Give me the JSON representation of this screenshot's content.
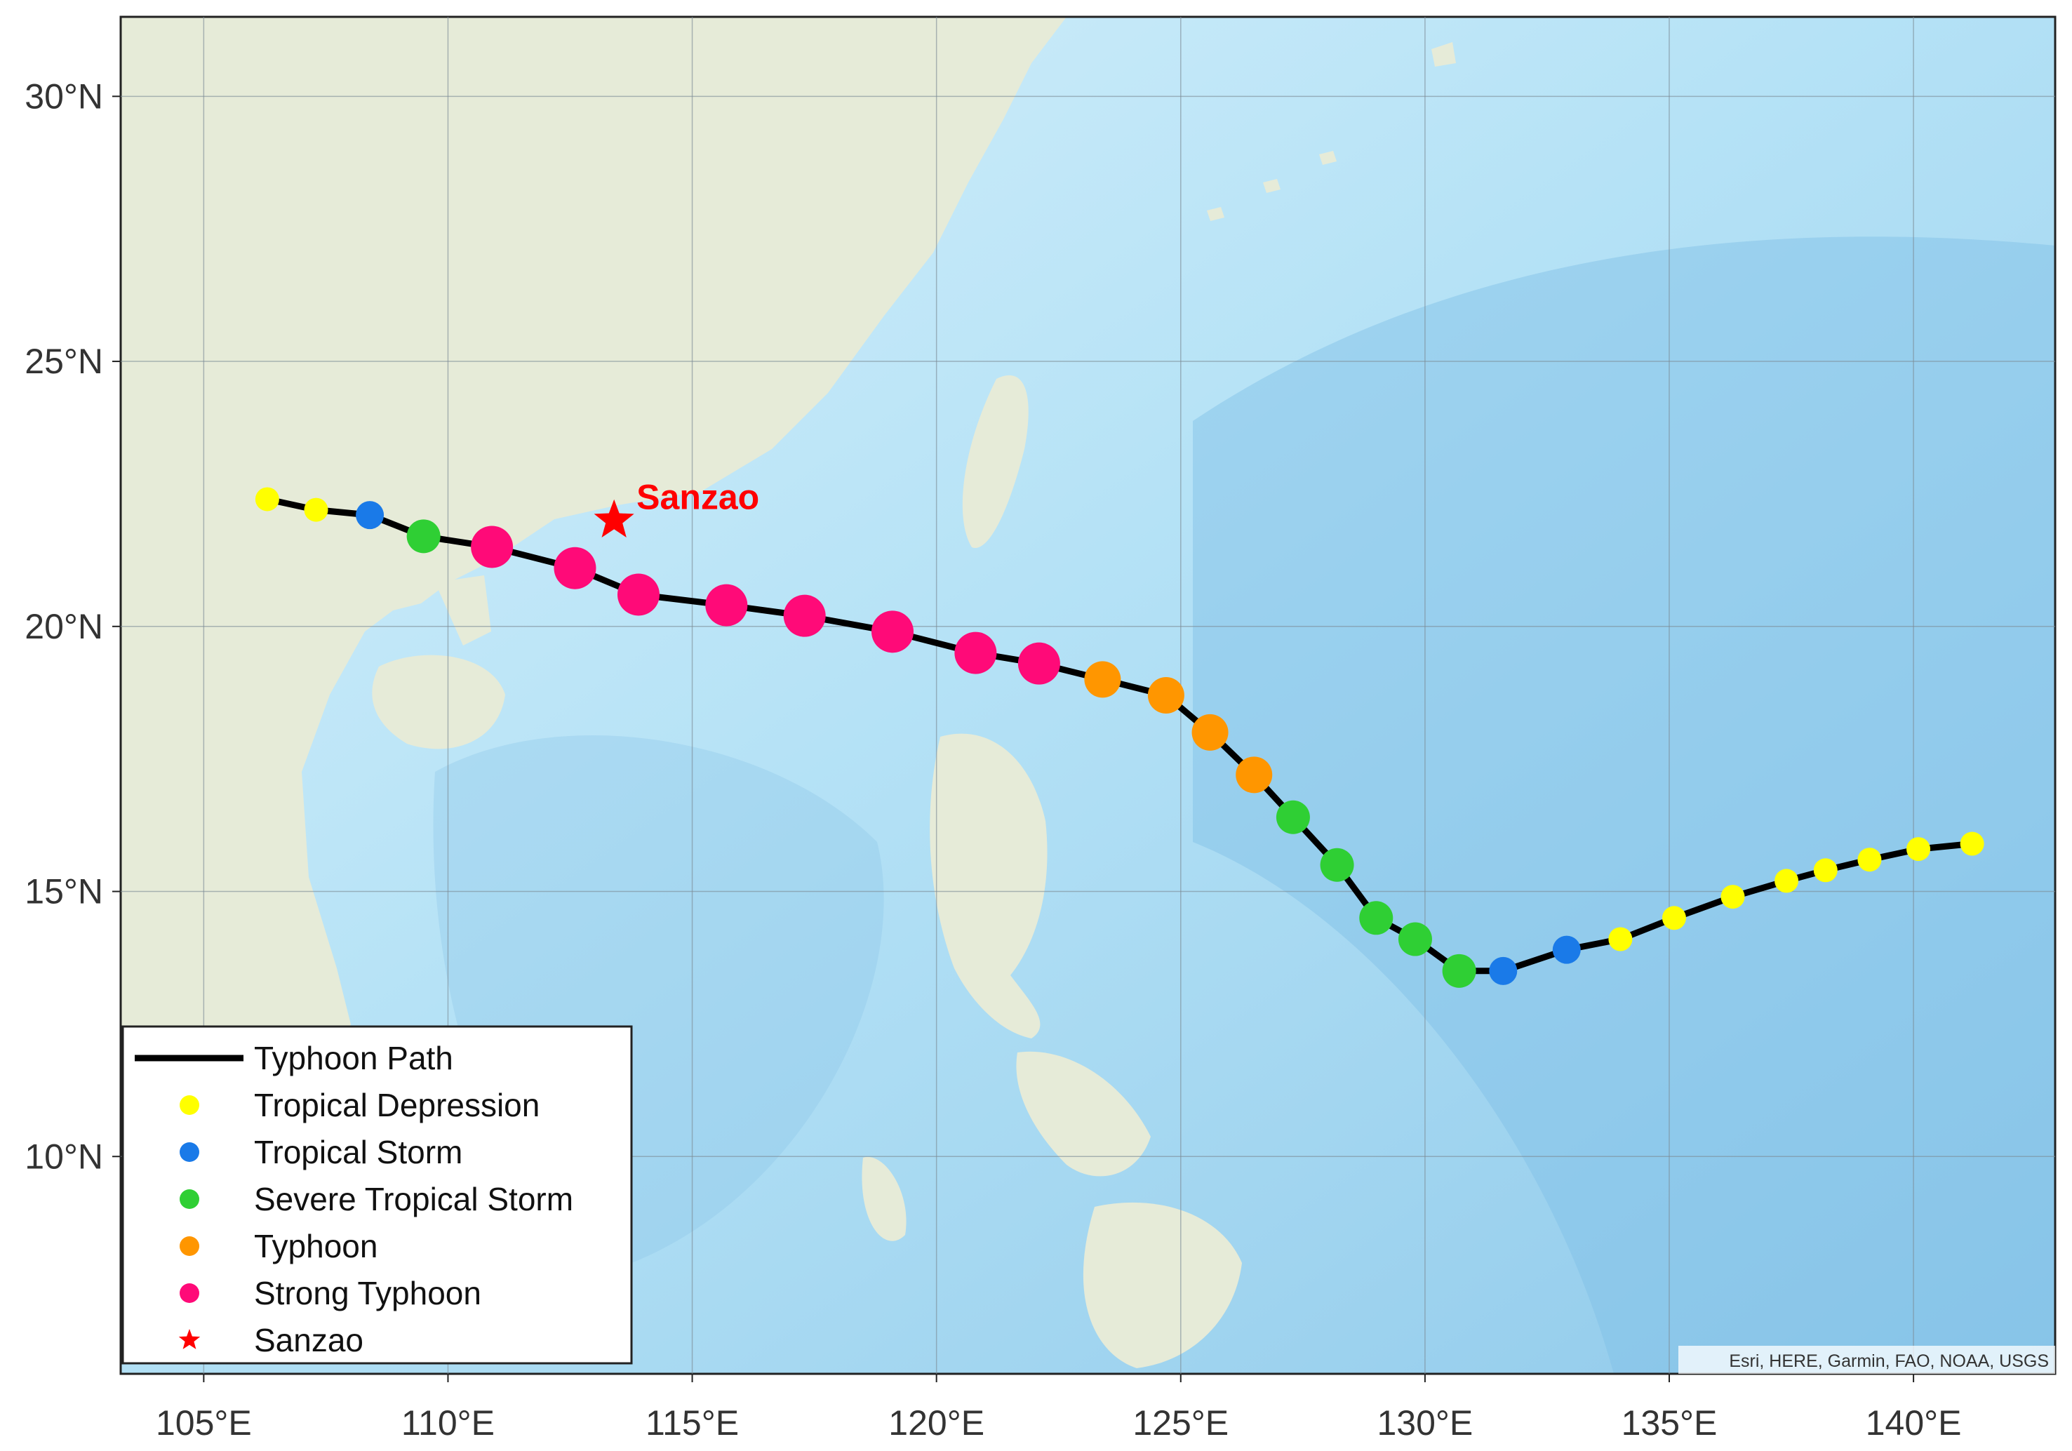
{
  "map": {
    "lon_range": [
      103.3,
      142.9
    ],
    "lat_range": [
      5.9,
      31.5
    ],
    "lon_ticks": [
      105,
      110,
      115,
      120,
      125,
      130,
      135,
      140
    ],
    "lon_tick_labels": [
      "105°E",
      "110°E",
      "115°E",
      "120°E",
      "125°E",
      "130°E",
      "135°E",
      "140°E"
    ],
    "lat_ticks": [
      10,
      15,
      20,
      25,
      30
    ],
    "lat_tick_labels": [
      "10°N",
      "15°N",
      "20°N",
      "25°N",
      "30°N"
    ],
    "grid": true,
    "attribution": "Esri, HERE, Garmin, FAO, NOAA, USGS",
    "colors": {
      "ocean": "#9fd2ee",
      "land": "#e4ead6",
      "path": "#000000",
      "tropical_depression": "#ffff00",
      "tropical_storm": "#1a7ae8",
      "severe_tropical_storm": "#2fcf34",
      "typhoon": "#ff9600",
      "strong_typhoon": "#ff0a78",
      "station": "#ff0000"
    }
  },
  "station": {
    "label": "Sanzao",
    "lon": 113.4,
    "lat": 22.0
  },
  "track": [
    {
      "lon": 141.2,
      "lat": 15.9,
      "cat": "tropical_depression"
    },
    {
      "lon": 140.1,
      "lat": 15.8,
      "cat": "tropical_depression"
    },
    {
      "lon": 139.1,
      "lat": 15.6,
      "cat": "tropical_depression"
    },
    {
      "lon": 138.2,
      "lat": 15.4,
      "cat": "tropical_depression"
    },
    {
      "lon": 137.4,
      "lat": 15.2,
      "cat": "tropical_depression"
    },
    {
      "lon": 136.3,
      "lat": 14.9,
      "cat": "tropical_depression"
    },
    {
      "lon": 135.1,
      "lat": 14.5,
      "cat": "tropical_depression"
    },
    {
      "lon": 134.0,
      "lat": 14.1,
      "cat": "tropical_depression"
    },
    {
      "lon": 132.9,
      "lat": 13.9,
      "cat": "tropical_storm"
    },
    {
      "lon": 131.6,
      "lat": 13.5,
      "cat": "tropical_storm"
    },
    {
      "lon": 130.7,
      "lat": 13.5,
      "cat": "severe_tropical_storm"
    },
    {
      "lon": 129.8,
      "lat": 14.1,
      "cat": "severe_tropical_storm"
    },
    {
      "lon": 129.0,
      "lat": 14.5,
      "cat": "severe_tropical_storm"
    },
    {
      "lon": 128.2,
      "lat": 15.5,
      "cat": "severe_tropical_storm"
    },
    {
      "lon": 127.3,
      "lat": 16.4,
      "cat": "severe_tropical_storm"
    },
    {
      "lon": 126.5,
      "lat": 17.2,
      "cat": "typhoon"
    },
    {
      "lon": 125.6,
      "lat": 18.0,
      "cat": "typhoon"
    },
    {
      "lon": 124.7,
      "lat": 18.7,
      "cat": "typhoon"
    },
    {
      "lon": 123.4,
      "lat": 19.0,
      "cat": "typhoon"
    },
    {
      "lon": 122.1,
      "lat": 19.3,
      "cat": "strong_typhoon"
    },
    {
      "lon": 120.8,
      "lat": 19.5,
      "cat": "strong_typhoon"
    },
    {
      "lon": 119.1,
      "lat": 19.9,
      "cat": "strong_typhoon"
    },
    {
      "lon": 117.3,
      "lat": 20.2,
      "cat": "strong_typhoon"
    },
    {
      "lon": 115.7,
      "lat": 20.4,
      "cat": "strong_typhoon"
    },
    {
      "lon": 113.9,
      "lat": 20.6,
      "cat": "strong_typhoon"
    },
    {
      "lon": 112.6,
      "lat": 21.1,
      "cat": "strong_typhoon"
    },
    {
      "lon": 110.9,
      "lat": 21.5,
      "cat": "strong_typhoon"
    },
    {
      "lon": 109.5,
      "lat": 21.7,
      "cat": "severe_tropical_storm"
    },
    {
      "lon": 108.4,
      "lat": 22.1,
      "cat": "tropical_storm"
    },
    {
      "lon": 107.3,
      "lat": 22.2,
      "cat": "tropical_depression"
    },
    {
      "lon": 106.3,
      "lat": 22.4,
      "cat": "tropical_depression"
    }
  ],
  "legend": {
    "placement": "bottom-left",
    "items": [
      {
        "label": "Typhoon Path",
        "marker": "line",
        "color_key": "path"
      },
      {
        "label": "Tropical Depression",
        "marker": "dot",
        "color_key": "tropical_depression"
      },
      {
        "label": "Tropical Storm",
        "marker": "dot",
        "color_key": "tropical_storm"
      },
      {
        "label": "Severe Tropical Storm",
        "marker": "dot",
        "color_key": "severe_tropical_storm"
      },
      {
        "label": "Typhoon",
        "marker": "dot",
        "color_key": "typhoon"
      },
      {
        "label": "Strong Typhoon",
        "marker": "dot",
        "color_key": "strong_typhoon"
      },
      {
        "label": "Sanzao",
        "marker": "star",
        "color_key": "station"
      }
    ]
  }
}
